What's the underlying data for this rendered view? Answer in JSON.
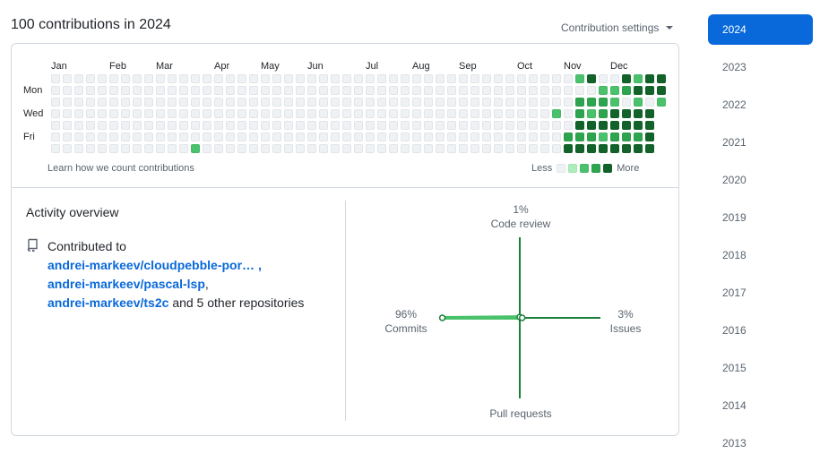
{
  "header": {
    "title": "100 contributions in 2024",
    "settings_label": "Contribution settings"
  },
  "graph": {
    "months": [
      "Jan",
      "Feb",
      "Mar",
      "Apr",
      "May",
      "Jun",
      "Jul",
      "Aug",
      "Sep",
      "Oct",
      "Nov",
      "Dec"
    ],
    "days": [
      "Mon",
      "Wed",
      "Fri"
    ],
    "weeks": 53,
    "colors": [
      "#eff2f5",
      "#aceebb",
      "#4ac26b",
      "#2da44e",
      "#116329"
    ],
    "contributions": [
      {
        "week": 12,
        "day": 6,
        "level": 2
      },
      {
        "week": 43,
        "day": 3,
        "level": 2
      },
      {
        "week": 44,
        "day": 5,
        "level": 3
      },
      {
        "week": 44,
        "day": 6,
        "level": 4
      },
      {
        "week": 45,
        "day": 0,
        "level": 2
      },
      {
        "week": 45,
        "day": 2,
        "level": 3
      },
      {
        "week": 45,
        "day": 3,
        "level": 3
      },
      {
        "week": 45,
        "day": 4,
        "level": 4
      },
      {
        "week": 45,
        "day": 5,
        "level": 3
      },
      {
        "week": 45,
        "day": 6,
        "level": 4
      },
      {
        "week": 46,
        "day": 0,
        "level": 4
      },
      {
        "week": 46,
        "day": 2,
        "level": 3
      },
      {
        "week": 46,
        "day": 3,
        "level": 2
      },
      {
        "week": 46,
        "day": 4,
        "level": 4
      },
      {
        "week": 46,
        "day": 5,
        "level": 3
      },
      {
        "week": 46,
        "day": 6,
        "level": 4
      },
      {
        "week": 47,
        "day": 1,
        "level": 2
      },
      {
        "week": 47,
        "day": 2,
        "level": 3
      },
      {
        "week": 47,
        "day": 3,
        "level": 3
      },
      {
        "week": 47,
        "day": 4,
        "level": 4
      },
      {
        "week": 47,
        "day": 5,
        "level": 2
      },
      {
        "week": 47,
        "day": 6,
        "level": 4
      },
      {
        "week": 48,
        "day": 1,
        "level": 2
      },
      {
        "week": 48,
        "day": 2,
        "level": 2
      },
      {
        "week": 48,
        "day": 3,
        "level": 4
      },
      {
        "week": 48,
        "day": 4,
        "level": 4
      },
      {
        "week": 48,
        "day": 5,
        "level": 3
      },
      {
        "week": 48,
        "day": 6,
        "level": 4
      },
      {
        "week": 49,
        "day": 0,
        "level": 4
      },
      {
        "week": 49,
        "day": 1,
        "level": 3
      },
      {
        "week": 49,
        "day": 3,
        "level": 4
      },
      {
        "week": 49,
        "day": 4,
        "level": 4
      },
      {
        "week": 49,
        "day": 5,
        "level": 3
      },
      {
        "week": 49,
        "day": 6,
        "level": 4
      },
      {
        "week": 50,
        "day": 0,
        "level": 2
      },
      {
        "week": 50,
        "day": 1,
        "level": 4
      },
      {
        "week": 50,
        "day": 2,
        "level": 2
      },
      {
        "week": 50,
        "day": 3,
        "level": 4
      },
      {
        "week": 50,
        "day": 4,
        "level": 4
      },
      {
        "week": 50,
        "day": 5,
        "level": 3
      },
      {
        "week": 50,
        "day": 6,
        "level": 4
      },
      {
        "week": 51,
        "day": 0,
        "level": 4
      },
      {
        "week": 51,
        "day": 1,
        "level": 4
      },
      {
        "week": 51,
        "day": 3,
        "level": 4
      },
      {
        "week": 51,
        "day": 4,
        "level": 4
      },
      {
        "week": 51,
        "day": 5,
        "level": 4
      },
      {
        "week": 51,
        "day": 6,
        "level": 4
      },
      {
        "week": 52,
        "day": 0,
        "level": 4
      },
      {
        "week": 52,
        "day": 1,
        "level": 4
      },
      {
        "week": 52,
        "day": 2,
        "level": 2
      },
      {
        "week": 52,
        "day": 3,
        "level": 2
      },
      {
        "week": 52,
        "day": 4,
        "level": 4
      },
      {
        "week": 52,
        "day": 5,
        "level": 2
      },
      {
        "week": 52,
        "day": 6,
        "level": 4
      }
    ],
    "learn_link": "Learn how we count contributions",
    "legend_less": "Less",
    "legend_more": "More"
  },
  "overview": {
    "title": "Activity overview",
    "contributed_to": "Contributed to",
    "repos": [
      "andrei-markeev/cloudpebble-por… ,",
      "andrei-markeev/pascal-lsp",
      "andrei-markeev/ts2c"
    ],
    "comma": ",",
    "others": "and 5 other repositories"
  },
  "activity_chart": {
    "code_review": {
      "label": "Code review",
      "pct_text": "1%",
      "value": 1
    },
    "commits": {
      "label": "Commits",
      "pct_text": "96%",
      "value": 96
    },
    "issues": {
      "label": "Issues",
      "pct_text": "3%",
      "value": 3
    },
    "pull_requests": {
      "label": "Pull requests",
      "pct_text": "",
      "value": 0
    }
  },
  "years": [
    "2024",
    "2023",
    "2022",
    "2021",
    "2020",
    "2019",
    "2018",
    "2017",
    "2016",
    "2015",
    "2014",
    "2013"
  ],
  "active_year": "2024"
}
